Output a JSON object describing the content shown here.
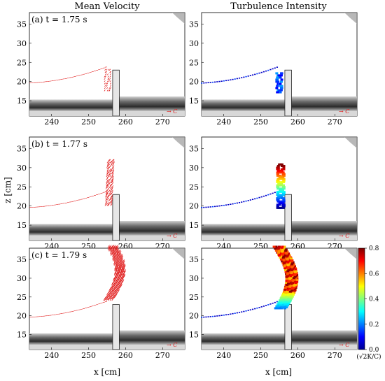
{
  "columns": [
    "Mean Velocity",
    "Turbulence Intensity"
  ],
  "panels": [
    {
      "label": "(a) t = 1.75 s"
    },
    {
      "label": "(b) t = 1.77 s"
    },
    {
      "label": "(c) t = 1.79 s"
    }
  ],
  "x_label": "x [cm]",
  "y_label": "z [cm]",
  "x_ticks": [
    "240",
    "250",
    "260",
    "270"
  ],
  "y_ticks": [
    "15",
    "20",
    "25",
    "30",
    "35"
  ],
  "flow_dir_label": "→ C",
  "colorbar": {
    "ticks": [
      "0.0",
      "0.2",
      "0.4",
      "0.6",
      "0.8"
    ],
    "label": "(√2K/C)",
    "range": [
      0.0,
      0.8
    ]
  },
  "colors": {
    "vector": "#e01818",
    "cmap_low": "#00008f",
    "cmap_high": "#7f0000"
  }
}
